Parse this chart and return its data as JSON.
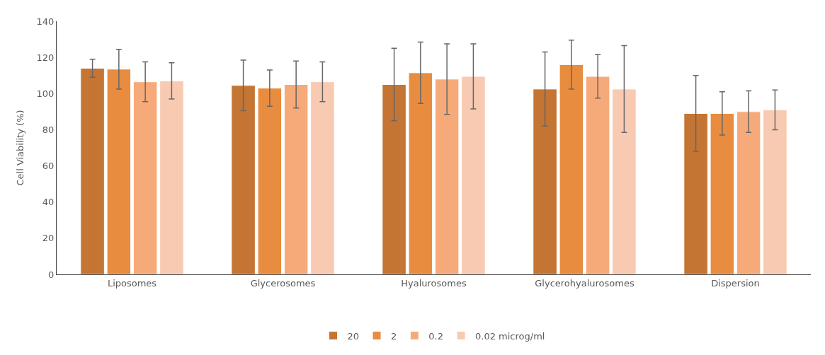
{
  "chart_data": {
    "type": "bar",
    "ylabel": "Cell Viability (%)",
    "categories": [
      "Liposomes",
      "Glycerosomes",
      "Hyalurosomes",
      "Glycerohyalurosomes",
      "Dispersion"
    ],
    "series": [
      {
        "name": "20",
        "color": "#c47533",
        "values": [
          114,
          104.5,
          105,
          102.5,
          89
        ],
        "errors": [
          5,
          14,
          20,
          20.5,
          21
        ]
      },
      {
        "name": "2",
        "color": "#e88c40",
        "values": [
          113.5,
          103,
          111.5,
          116,
          89
        ],
        "errors": [
          11,
          10,
          17,
          13.5,
          12
        ]
      },
      {
        "name": "0.2",
        "color": "#f7aa79",
        "values": [
          106.5,
          105,
          108,
          109.5,
          90
        ],
        "errors": [
          11,
          13,
          19.5,
          12,
          11.5
        ]
      },
      {
        "name": "0.02 microg/ml",
        "color": "#f8cab2",
        "values": [
          107,
          106.5,
          109.5,
          102.5,
          91
        ],
        "errors": [
          10,
          11,
          18,
          24,
          11
        ]
      }
    ],
    "ylim": [
      0,
      140
    ],
    "yticks": [
      0,
      20,
      40,
      60,
      80,
      100,
      120,
      140
    ],
    "legend": "bottom"
  }
}
